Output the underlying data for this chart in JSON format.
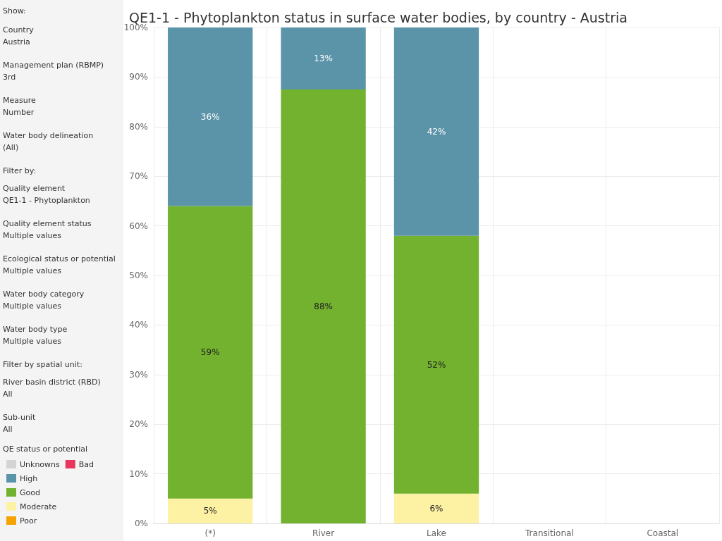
{
  "chart_data": {
    "type": "bar",
    "stacked": true,
    "title": "QE1-1 - Phytoplankton status in surface water bodies, by country - Austria",
    "categories": [
      "(*)",
      "River",
      "Lake",
      "Transitional",
      "Coastal"
    ],
    "series": [
      {
        "name": "Bad",
        "color": "#e8365c",
        "values": [
          null,
          null,
          null,
          null,
          null
        ],
        "value_labels": [
          null,
          null,
          null,
          null,
          null
        ]
      },
      {
        "name": "Poor",
        "color": "#f5a300",
        "values": [
          null,
          null,
          null,
          null,
          null
        ],
        "value_labels": [
          null,
          null,
          null,
          null,
          null
        ]
      },
      {
        "name": "Moderate",
        "color": "#fdf2a4",
        "values": [
          5,
          null,
          6,
          null,
          null
        ],
        "value_labels": [
          "5%",
          null,
          "6%",
          null,
          null
        ]
      },
      {
        "name": "Good",
        "color": "#72b22e",
        "values": [
          59,
          87.5,
          52,
          null,
          null
        ],
        "value_labels": [
          "59%",
          "88%",
          "52%",
          null,
          null
        ]
      },
      {
        "name": "High",
        "color": "#5b93a8",
        "values": [
          36,
          12.5,
          42,
          null,
          null
        ],
        "value_labels": [
          "36%",
          "13%",
          "42%",
          null,
          null
        ]
      },
      {
        "name": "Unknowns",
        "color": "#d4d4d4",
        "values": [
          null,
          null,
          null,
          null,
          null
        ],
        "value_labels": [
          null,
          null,
          null,
          null,
          null
        ]
      }
    ],
    "ylim": [
      0,
      100
    ],
    "yticks": [
      {
        "value": 0,
        "label": "0%"
      },
      {
        "value": 10,
        "label": "10%"
      },
      {
        "value": 20,
        "label": "20%"
      },
      {
        "value": 30,
        "label": "30%"
      },
      {
        "value": 40,
        "label": "40%"
      },
      {
        "value": 50,
        "label": "50%"
      },
      {
        "value": 60,
        "label": "60%"
      },
      {
        "value": 70,
        "label": "70%"
      },
      {
        "value": 80,
        "label": "80%"
      },
      {
        "value": 90,
        "label": "90%"
      },
      {
        "value": 100,
        "label": "100%"
      }
    ],
    "grid": true,
    "legend": "bottom left",
    "legend_title": "QE status or potential",
    "annotations": [
      "Show:",
      "Country",
      "Austria",
      "Management plan (RBMP)",
      "3rd",
      "Measure",
      "Number",
      "Water body delineation",
      "(All)",
      "Filter by:",
      "Quality element",
      "QE1-1 - Phytoplankton",
      "Quality element status",
      "Multiple values",
      "Ecological status or potential",
      "Multiple values",
      "Water body category",
      "Multiple values",
      "Water body type",
      "Multiple values",
      "Filter by spatial unit:",
      "River basin district (RBD)",
      "All",
      "Sub-unit",
      "All"
    ]
  }
}
